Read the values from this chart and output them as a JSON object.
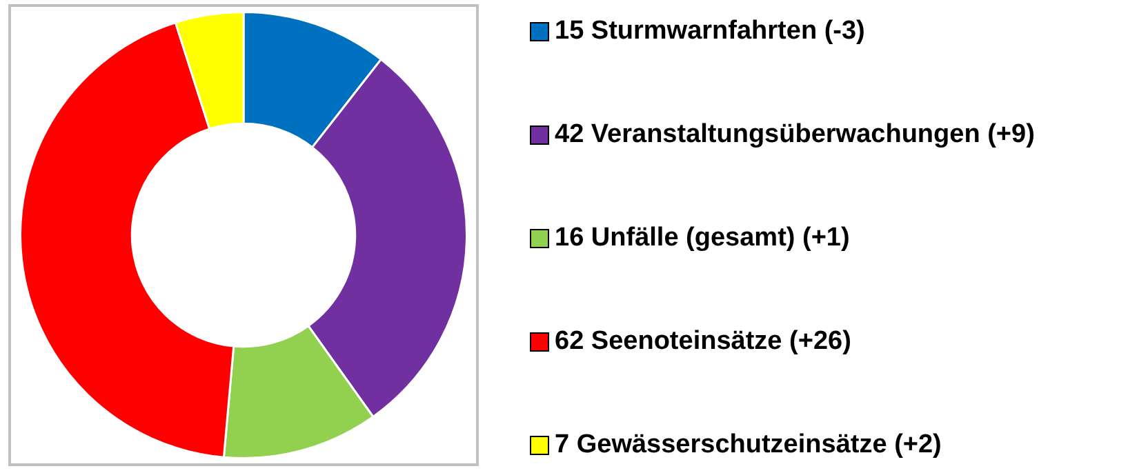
{
  "chart_data": {
    "type": "donut",
    "categories": [
      "15 Sturmwarnfahrten (-3)",
      "42 Veranstaltungsüberwachungen (+9)",
      "16 Unfälle (gesamt) (+1)",
      "62 Seenoteinsätze (+26)",
      "7 Gewässerschutzeinsätze (+2)"
    ],
    "values": [
      15,
      42,
      16,
      62,
      7
    ],
    "colors": [
      "#0070c0",
      "#7030a0",
      "#92d050",
      "#ff0000",
      "#ffff00"
    ],
    "legend": "right"
  }
}
